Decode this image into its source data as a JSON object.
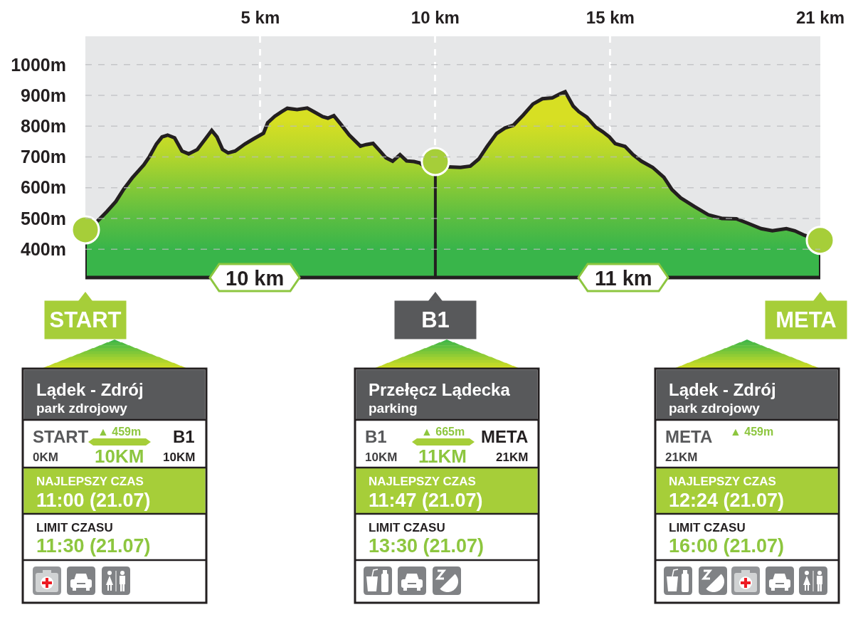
{
  "chart_data": {
    "type": "area",
    "xlim": [
      0,
      21
    ],
    "xticks": [
      {
        "value": 5,
        "label": "5 km"
      },
      {
        "value": 10,
        "label": "10 km"
      },
      {
        "value": 15,
        "label": "15 km"
      },
      {
        "value": 21,
        "label": "21 km"
      }
    ],
    "ylim": [
      308,
      1092
    ],
    "yticks": [
      {
        "value": 400,
        "label": "400m"
      },
      {
        "value": 500,
        "label": "500m"
      },
      {
        "value": 600,
        "label": "600m"
      },
      {
        "value": 700,
        "label": "700m"
      },
      {
        "value": 800,
        "label": "800m"
      },
      {
        "value": 900,
        "label": "900m"
      },
      {
        "value": 1000,
        "label": "1000m"
      }
    ],
    "grid": true,
    "series": [
      {
        "color": "#39b54a",
        "x": [
          0,
          0.3,
          0.62,
          0.87,
          1.1,
          1.34,
          1.67,
          1.83,
          2.03,
          2.19,
          2.35,
          2.55,
          2.76,
          2.95,
          3.2,
          3.44,
          3.61,
          3.76,
          3.92,
          4.08,
          4.28,
          4.56,
          4.81,
          5.09,
          5.21,
          5.41,
          5.61,
          5.77,
          6.05,
          6.34,
          6.53,
          6.78,
          6.93,
          7.1,
          7.3,
          7.54,
          7.86,
          8.02,
          8.22,
          8.38,
          8.59,
          8.78,
          8.99,
          9.18,
          9.39,
          9.56,
          9.67,
          10.72,
          11,
          11.24,
          11.48,
          11.75,
          11.99,
          12.23,
          12.51,
          12.79,
          13.06,
          13.34,
          13.58,
          13.71,
          13.94,
          14.1,
          14.33,
          14.58,
          14.78,
          14.97,
          15.14,
          15.42,
          15.65,
          15.89,
          16.21,
          16.53,
          16.76,
          17.01,
          17.4,
          17.8,
          18.19,
          18.6,
          18.92,
          19.31,
          19.63,
          20.03,
          20.27,
          20.55,
          21
        ],
        "values": [
          463,
          486,
          523,
          555,
          596,
          632,
          674,
          701,
          742,
          765,
          771,
          762,
          719,
          710,
          724,
          760,
          786,
          765,
          724,
          713,
          719,
          742,
          759,
          777,
          811,
          832,
          847,
          858,
          854,
          859,
          847,
          831,
          826,
          834,
          806,
          771,
          735,
          740,
          744,
          724,
          697,
          686,
          707,
          687,
          685,
          680,
          671,
          666,
          670,
          693,
          734,
          776,
          794,
          803,
          836,
          872,
          889,
          892,
          906,
          912,
          865,
          847,
          829,
          797,
          782,
          765,
          743,
          734,
          707,
          686,
          666,
          634,
          594,
          567,
          539,
          512,
          500,
          499,
          485,
          467,
          460,
          467,
          460,
          445,
          429
        ]
      },
      {
        "type": "lollipop",
        "color": "#a6ce39",
        "marker": "circle",
        "x": [
          0,
          10,
          21
        ],
        "values": [
          463,
          685,
          429
        ]
      }
    ],
    "annotations": [
      "10 km",
      "11 km",
      "START",
      "B1",
      "META",
      "Lądek - Zdrój",
      "park zdrojowy",
      "START",
      "0KM",
      "▲ 459m",
      "10KM",
      "B1",
      "10KM",
      "NAJLEPSZY CZAS",
      "11:00 (21.07)",
      "LIMIT CZASU",
      "11:30 (21.07)",
      "Przełęcz Lądecka",
      "parking",
      "B1",
      "10KM",
      "▲ 665m",
      "11KM",
      "META",
      "21KM",
      "NAJLEPSZY CZAS",
      "11:47 (21.07)",
      "LIMIT CZASU",
      "13:30 (21.07)",
      "Lądek - Zdrój",
      "park zdrojowy",
      "META",
      "21KM",
      "▲ 459m",
      "NAJLEPSZY CZAS",
      "12:24 (21.07)",
      "LIMIT CZASU",
      "16:00 (21.07)"
    ]
  }
}
